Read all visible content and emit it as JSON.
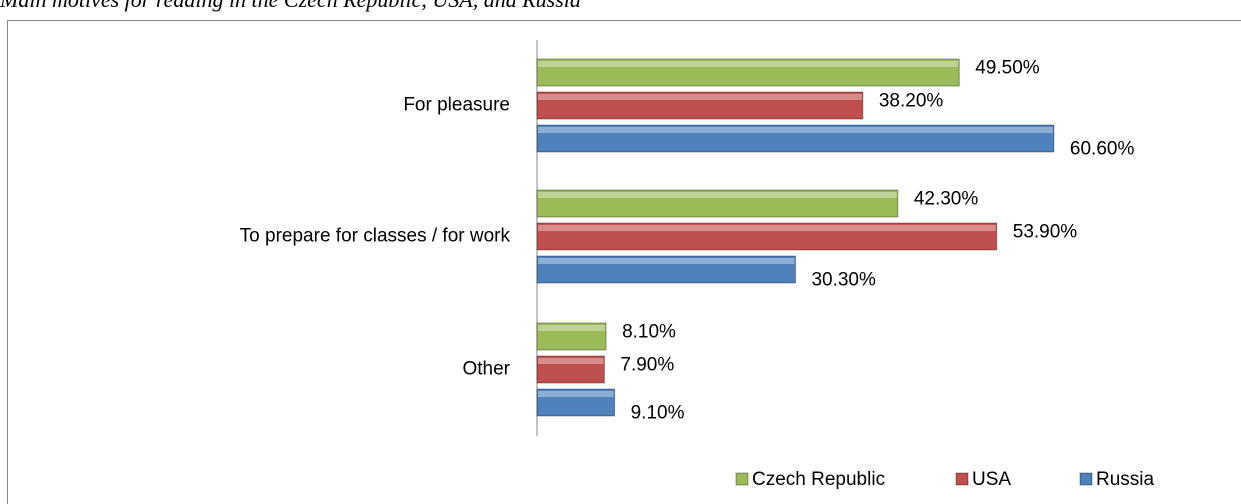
{
  "chart_data": {
    "type": "bar",
    "orientation": "horizontal",
    "title": "Main motives for reading in the Czech Republic, USA, and Russia",
    "categories": [
      "For pleasure",
      "To prepare for classes / for work",
      "Other"
    ],
    "series": [
      {
        "name": "Czech Republic",
        "color": "#9bbb59",
        "values": [
          49.5,
          42.3,
          8.1
        ],
        "value_labels": [
          "49.50%",
          "42.30%",
          "8.10%"
        ]
      },
      {
        "name": "USA",
        "color": "#c0504d",
        "values": [
          38.2,
          53.9,
          7.9
        ],
        "value_labels": [
          "38.20%",
          "53.90%",
          "7.90%"
        ]
      },
      {
        "name": "Russia",
        "color": "#4f81bd",
        "values": [
          60.6,
          30.3,
          9.1
        ],
        "value_labels": [
          "60.60%",
          "30.30%",
          "9.10%"
        ]
      }
    ],
    "legend": "bottom-right"
  }
}
